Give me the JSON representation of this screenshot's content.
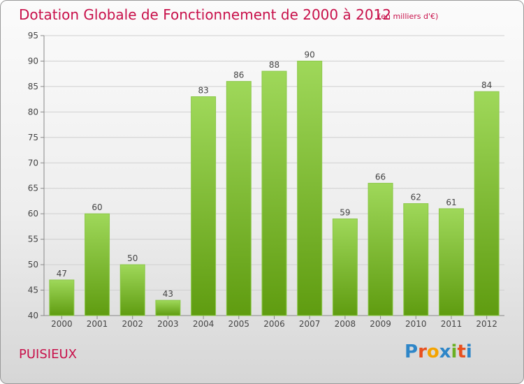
{
  "title": "Dotation Globale de Fonctionnement de 2000 à 2012",
  "subtitle": "(en milliers d'€)",
  "place": "PUISIEUX",
  "logo": {
    "text": "Proxiti",
    "letters": [
      "P",
      "r",
      "o",
      "x",
      "i",
      "t",
      "i"
    ],
    "colors": [
      "#2e86c8",
      "#e8501e",
      "#f4a300",
      "#2e86c8",
      "#6ab023",
      "#e8501e",
      "#2e86c8"
    ]
  },
  "colors": {
    "title": "#c8104a",
    "bar_top": "#9fd85a",
    "bar_bottom": "#5f9c10",
    "grid": "#cfcfcf"
  },
  "chart_data": {
    "type": "bar",
    "title": "Dotation Globale de Fonctionnement de 2000 à 2012",
    "categories": [
      "2000",
      "2001",
      "2002",
      "2003",
      "2004",
      "2005",
      "2006",
      "2007",
      "2008",
      "2009",
      "2010",
      "2011",
      "2012"
    ],
    "values": [
      47,
      60,
      50,
      43,
      83,
      86,
      88,
      90,
      59,
      66,
      62,
      61,
      84
    ],
    "ylim": [
      40,
      95
    ],
    "yticks": [
      40,
      45,
      50,
      55,
      60,
      65,
      70,
      75,
      80,
      85,
      90,
      95
    ],
    "xlabel": "",
    "ylabel": "",
    "grid": true
  }
}
